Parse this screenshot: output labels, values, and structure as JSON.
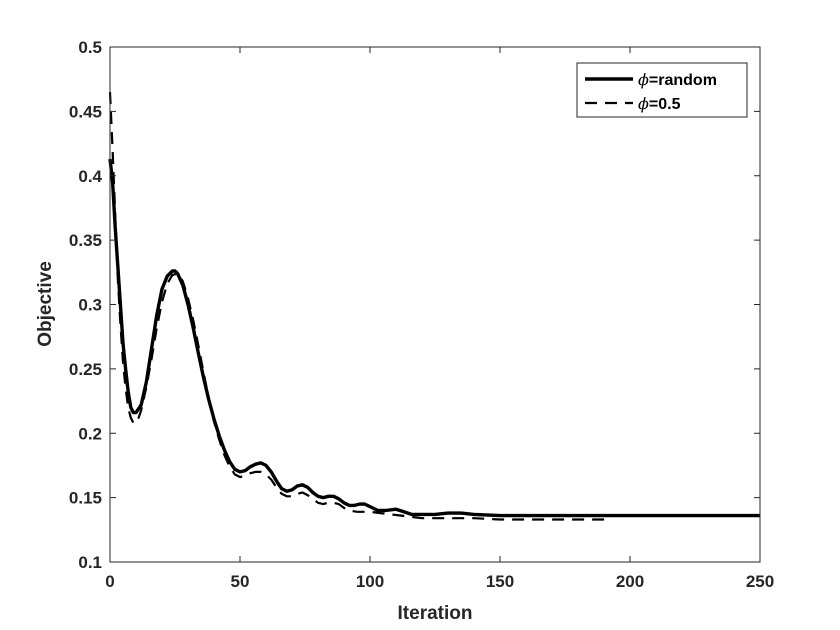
{
  "chart_data": {
    "type": "line",
    "xlabel": "Iteration",
    "ylabel": "Objective",
    "xlim": [
      0,
      250
    ],
    "ylim": [
      0.1,
      0.5
    ],
    "xticks": [
      0,
      50,
      100,
      150,
      200,
      250
    ],
    "yticks": [
      0.1,
      0.15,
      0.2,
      0.25,
      0.3,
      0.35,
      0.4,
      0.45,
      0.5
    ],
    "grid": false,
    "legend_position": "top-right",
    "series": [
      {
        "name": "ϕ=random",
        "legend_symbol": "ϕ",
        "legend_rest": "=random",
        "style": "solid",
        "color": "#000000",
        "x": [
          0,
          1,
          2,
          3,
          4,
          5,
          6,
          7,
          8,
          9,
          10,
          12,
          14,
          16,
          18,
          20,
          22,
          24,
          25,
          26,
          28,
          30,
          32,
          34,
          36,
          38,
          40,
          42,
          44,
          46,
          48,
          50,
          52,
          54,
          56,
          58,
          60,
          62,
          64,
          66,
          68,
          70,
          72,
          74,
          76,
          78,
          80,
          82,
          84,
          86,
          88,
          90,
          92,
          94,
          96,
          98,
          100,
          103,
          106,
          110,
          113,
          116,
          120,
          125,
          130,
          135,
          140,
          150,
          160,
          180,
          200,
          220,
          250
        ],
        "y": [
          0.413,
          0.395,
          0.36,
          0.33,
          0.3,
          0.27,
          0.25,
          0.232,
          0.22,
          0.216,
          0.216,
          0.222,
          0.24,
          0.266,
          0.292,
          0.312,
          0.322,
          0.326,
          0.326,
          0.324,
          0.315,
          0.3,
          0.282,
          0.262,
          0.243,
          0.226,
          0.211,
          0.198,
          0.187,
          0.178,
          0.172,
          0.17,
          0.171,
          0.174,
          0.176,
          0.177,
          0.175,
          0.17,
          0.163,
          0.157,
          0.155,
          0.156,
          0.159,
          0.16,
          0.158,
          0.154,
          0.151,
          0.15,
          0.151,
          0.151,
          0.149,
          0.146,
          0.144,
          0.144,
          0.145,
          0.145,
          0.143,
          0.14,
          0.14,
          0.141,
          0.139,
          0.137,
          0.137,
          0.137,
          0.138,
          0.138,
          0.137,
          0.136,
          0.136,
          0.136,
          0.136,
          0.136,
          0.136
        ]
      },
      {
        "name": "ϕ=0.5",
        "legend_symbol": "ϕ",
        "legend_rest": "=0.5",
        "style": "dashed",
        "color": "#000000",
        "x": [
          0,
          1,
          2,
          3,
          4,
          5,
          6,
          7,
          8,
          9,
          10,
          11,
          12,
          14,
          16,
          18,
          20,
          22,
          24,
          26,
          28,
          30,
          32,
          34,
          36,
          38,
          40,
          42,
          44,
          46,
          48,
          50,
          52,
          54,
          56,
          58,
          60,
          62,
          64,
          66,
          68,
          70,
          72,
          74,
          76,
          78,
          80,
          82,
          84,
          86,
          88,
          90,
          92,
          95,
          98,
          100,
          104,
          108,
          112,
          116,
          120,
          130,
          140,
          150,
          160,
          170,
          180,
          192
        ],
        "y": [
          0.465,
          0.42,
          0.37,
          0.32,
          0.285,
          0.255,
          0.235,
          0.22,
          0.212,
          0.208,
          0.208,
          0.212,
          0.218,
          0.236,
          0.258,
          0.282,
          0.302,
          0.316,
          0.323,
          0.324,
          0.318,
          0.305,
          0.288,
          0.268,
          0.247,
          0.227,
          0.209,
          0.195,
          0.183,
          0.174,
          0.168,
          0.166,
          0.167,
          0.169,
          0.17,
          0.17,
          0.168,
          0.164,
          0.158,
          0.153,
          0.151,
          0.151,
          0.153,
          0.154,
          0.152,
          0.149,
          0.146,
          0.145,
          0.146,
          0.146,
          0.145,
          0.142,
          0.14,
          0.139,
          0.139,
          0.139,
          0.138,
          0.137,
          0.136,
          0.135,
          0.134,
          0.134,
          0.134,
          0.133,
          0.133,
          0.133,
          0.133,
          0.133
        ]
      }
    ]
  }
}
